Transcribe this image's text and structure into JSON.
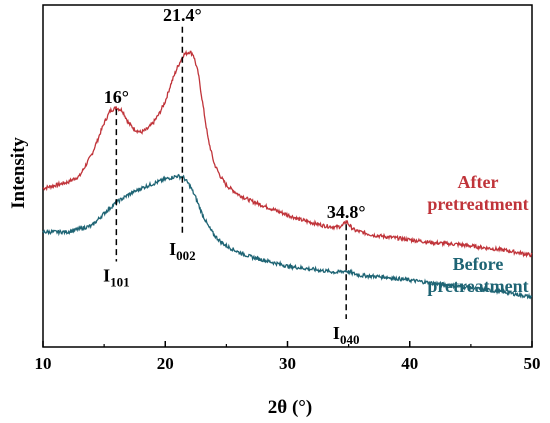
{
  "chart_data": {
    "type": "line",
    "xlabel": "2θ (°)",
    "ylabel": "Intensity",
    "xlim": [
      10,
      50
    ],
    "xticks": [
      "10",
      "20",
      "30",
      "40",
      "50"
    ],
    "grid": false,
    "series": [
      {
        "name": "After pretreatment",
        "label_lines": [
          "After",
          "pretreatment"
        ],
        "color": "#c0343a",
        "points": [
          [
            10,
            0.51
          ],
          [
            11,
            0.52
          ],
          [
            12,
            0.53
          ],
          [
            13,
            0.55
          ],
          [
            14,
            0.62
          ],
          [
            15,
            0.72
          ],
          [
            15.5,
            0.76
          ],
          [
            16,
            0.77
          ],
          [
            16.5,
            0.76
          ],
          [
            17,
            0.72
          ],
          [
            17.5,
            0.7
          ],
          [
            18,
            0.69
          ],
          [
            18.5,
            0.7
          ],
          [
            19,
            0.72
          ],
          [
            19.5,
            0.75
          ],
          [
            20,
            0.79
          ],
          [
            20.5,
            0.85
          ],
          [
            21,
            0.9
          ],
          [
            21.5,
            0.94
          ],
          [
            22,
            0.95
          ],
          [
            22.3,
            0.94
          ],
          [
            22.7,
            0.88
          ],
          [
            23,
            0.8
          ],
          [
            23.5,
            0.67
          ],
          [
            24,
            0.59
          ],
          [
            24.5,
            0.55
          ],
          [
            25,
            0.52
          ],
          [
            26,
            0.49
          ],
          [
            27,
            0.47
          ],
          [
            28,
            0.455
          ],
          [
            29,
            0.44
          ],
          [
            30,
            0.425
          ],
          [
            31,
            0.41
          ],
          [
            32,
            0.4
          ],
          [
            33,
            0.39
          ],
          [
            34,
            0.385
          ],
          [
            34.5,
            0.39
          ],
          [
            34.8,
            0.405
          ],
          [
            35.1,
            0.39
          ],
          [
            35.5,
            0.375
          ],
          [
            36,
            0.37
          ],
          [
            37,
            0.36
          ],
          [
            38,
            0.355
          ],
          [
            39,
            0.35
          ],
          [
            40,
            0.345
          ],
          [
            42,
            0.335
          ],
          [
            44,
            0.33
          ],
          [
            46,
            0.32
          ],
          [
            48,
            0.31
          ],
          [
            50,
            0.295
          ]
        ]
      },
      {
        "name": "Before pretreatment",
        "label_lines": [
          "Before",
          "pretreatment"
        ],
        "color": "#1e6474",
        "points": [
          [
            10,
            0.37
          ],
          [
            11,
            0.37
          ],
          [
            12,
            0.37
          ],
          [
            13,
            0.38
          ],
          [
            14,
            0.39
          ],
          [
            15,
            0.43
          ],
          [
            16,
            0.465
          ],
          [
            17,
            0.49
          ],
          [
            18,
            0.51
          ],
          [
            19,
            0.525
          ],
          [
            20,
            0.54
          ],
          [
            20.5,
            0.545
          ],
          [
            21,
            0.55
          ],
          [
            21.5,
            0.545
          ],
          [
            22,
            0.52
          ],
          [
            22.5,
            0.48
          ],
          [
            23,
            0.43
          ],
          [
            23.5,
            0.39
          ],
          [
            24,
            0.36
          ],
          [
            24.5,
            0.34
          ],
          [
            25,
            0.325
          ],
          [
            26,
            0.305
          ],
          [
            27,
            0.29
          ],
          [
            28,
            0.28
          ],
          [
            29,
            0.27
          ],
          [
            30,
            0.26
          ],
          [
            31,
            0.255
          ],
          [
            32,
            0.25
          ],
          [
            33,
            0.245
          ],
          [
            34,
            0.24
          ],
          [
            34.8,
            0.245
          ],
          [
            35.5,
            0.235
          ],
          [
            36,
            0.23
          ],
          [
            38,
            0.225
          ],
          [
            40,
            0.215
          ],
          [
            42,
            0.205
          ],
          [
            44,
            0.195
          ],
          [
            46,
            0.185
          ],
          [
            48,
            0.175
          ],
          [
            50,
            0.16
          ]
        ]
      }
    ],
    "annotations": [
      {
        "label": "16°",
        "x": 16,
        "y_low": 0.275,
        "y_high": 0.765,
        "sublabel_main": "I",
        "sublabel_sub": "101"
      },
      {
        "label": "21.4°",
        "x": 21.4,
        "y_low": 0.36,
        "y_high": 1.03,
        "sublabel_main": "I",
        "sublabel_sub": "002"
      },
      {
        "label": "34.8°",
        "x": 34.8,
        "y_low": 0.09,
        "y_high": 0.395,
        "sublabel_main": "I",
        "sublabel_sub": "040"
      }
    ]
  }
}
